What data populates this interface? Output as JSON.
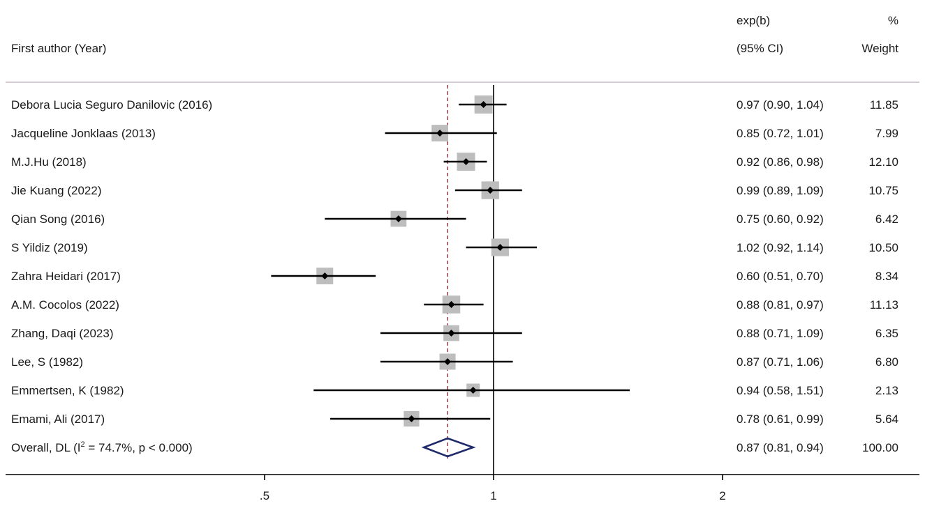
{
  "chart_data": {
    "type": "forest",
    "x_scale": "log",
    "x_ticks": [
      {
        "value": 0.5,
        "label": ".5"
      },
      {
        "value": 1,
        "label": "1"
      },
      {
        "value": 2,
        "label": "2"
      }
    ],
    "null_line": 1,
    "overall_line": 0.87,
    "headers": {
      "author": "First author (Year)",
      "effect_line1": "exp(b)",
      "effect_line2": "(95% CI)",
      "weight_line1": "%",
      "weight_line2": "Weight"
    },
    "studies": [
      {
        "label": "Debora Lucia Seguro Danilovic (2016)",
        "est": 0.97,
        "lo": 0.9,
        "hi": 1.04,
        "ci_text": "0.97 (0.90, 1.04)",
        "weight": 11.85,
        "weight_text": "11.85"
      },
      {
        "label": "Jacqueline Jonklaas (2013)",
        "est": 0.85,
        "lo": 0.72,
        "hi": 1.01,
        "ci_text": "0.85 (0.72, 1.01)",
        "weight": 7.99,
        "weight_text": "7.99"
      },
      {
        "label": "M.J.Hu (2018)",
        "est": 0.92,
        "lo": 0.86,
        "hi": 0.98,
        "ci_text": "0.92 (0.86, 0.98)",
        "weight": 12.1,
        "weight_text": "12.10"
      },
      {
        "label": "Jie Kuang (2022)",
        "est": 0.99,
        "lo": 0.89,
        "hi": 1.09,
        "ci_text": "0.99 (0.89, 1.09)",
        "weight": 10.75,
        "weight_text": "10.75"
      },
      {
        "label": "Qian Song (2016)",
        "est": 0.75,
        "lo": 0.6,
        "hi": 0.92,
        "ci_text": "0.75 (0.60, 0.92)",
        "weight": 6.42,
        "weight_text": "6.42"
      },
      {
        "label": "S Yildiz (2019)",
        "est": 1.02,
        "lo": 0.92,
        "hi": 1.14,
        "ci_text": "1.02 (0.92, 1.14)",
        "weight": 10.5,
        "weight_text": "10.50"
      },
      {
        "label": "Zahra Heidari (2017)",
        "est": 0.6,
        "lo": 0.51,
        "hi": 0.7,
        "ci_text": "0.60 (0.51, 0.70)",
        "weight": 8.34,
        "weight_text": "8.34"
      },
      {
        "label": "A.M. Cocolos (2022)",
        "est": 0.88,
        "lo": 0.81,
        "hi": 0.97,
        "ci_text": "0.88 (0.81, 0.97)",
        "weight": 11.13,
        "weight_text": "11.13"
      },
      {
        "label": "Zhang, Daqi (2023)",
        "est": 0.88,
        "lo": 0.71,
        "hi": 1.09,
        "ci_text": "0.88 (0.71, 1.09)",
        "weight": 6.35,
        "weight_text": "6.35"
      },
      {
        "label": "Lee, S (1982)",
        "est": 0.87,
        "lo": 0.71,
        "hi": 1.06,
        "ci_text": "0.87 (0.71, 1.06)",
        "weight": 6.8,
        "weight_text": "6.80"
      },
      {
        "label": "Emmertsen, K (1982)",
        "est": 0.94,
        "lo": 0.58,
        "hi": 1.51,
        "ci_text": "0.94 (0.58, 1.51)",
        "weight": 2.13,
        "weight_text": "2.13"
      },
      {
        "label": "Emami, Ali (2017)",
        "est": 0.78,
        "lo": 0.61,
        "hi": 0.99,
        "ci_text": "0.78 (0.61, 0.99)",
        "weight": 5.64,
        "weight_text": "5.64"
      }
    ],
    "overall": {
      "label_prefix": "Overall, DL (I",
      "label_sup": "2",
      "label_suffix": " = 74.7%, p < 0.000)",
      "est": 0.87,
      "lo": 0.81,
      "hi": 0.94,
      "ci_text": "0.87 (0.81, 0.94)",
      "weight_text": "100.00"
    },
    "colors": {
      "weight_box": "#bdbdbd",
      "point": "#000000",
      "ci_line": "#000000",
      "overall_diamond": "#1f2a6b",
      "overall_dashed_line": "#8b1a2b",
      "header_rule": "#c9b8c3",
      "axis": "#000000"
    }
  }
}
